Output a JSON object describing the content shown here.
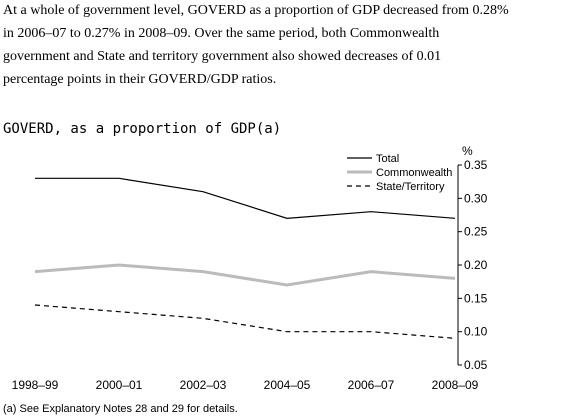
{
  "paragraph": [
    "At a whole of government level, GOVERD as a proportion of GDP decreased from 0.28%",
    "in 2006–07 to 0.27% in 2008–09. Over the same period, both Commonwealth",
    "government and State and territory government also showed decreases of 0.01",
    "percentage points in their GOVERD/GDP ratios."
  ],
  "chart_data": {
    "type": "line",
    "title": "GOVERD, as a proportion of GDP(a)",
    "y_label": "%",
    "footnote": "(a) See Explanatory Notes 28 and 29 for details.",
    "categories": [
      "1998–99",
      "2000–01",
      "2002–03",
      "2004–05",
      "2006–07",
      "2008–09"
    ],
    "series": [
      {
        "name": "Total",
        "color": "#000000",
        "dash": "solid",
        "values": [
          0.33,
          0.33,
          0.31,
          0.27,
          0.28,
          0.27
        ]
      },
      {
        "name": "Commonwealth",
        "color": "#bbbbbb",
        "dash": "solid",
        "values": [
          0.19,
          0.2,
          0.19,
          0.17,
          0.19,
          0.18
        ]
      },
      {
        "name": "State/Territory",
        "color": "#000000",
        "dash": "dashed",
        "values": [
          0.14,
          0.13,
          0.12,
          0.1,
          0.1,
          0.09
        ]
      }
    ],
    "ylim": [
      0.05,
      0.35
    ],
    "yticks": [
      0.05,
      {
        "value": 0.1,
        "label": "0.10"
      },
      0.15,
      {
        "value": 0.2,
        "label": "0.20"
      },
      0.25,
      {
        "value": 0.3,
        "label": "0.30"
      },
      0.35
    ],
    "grid": false,
    "y_axis_side": "right",
    "legend": "top-right"
  }
}
